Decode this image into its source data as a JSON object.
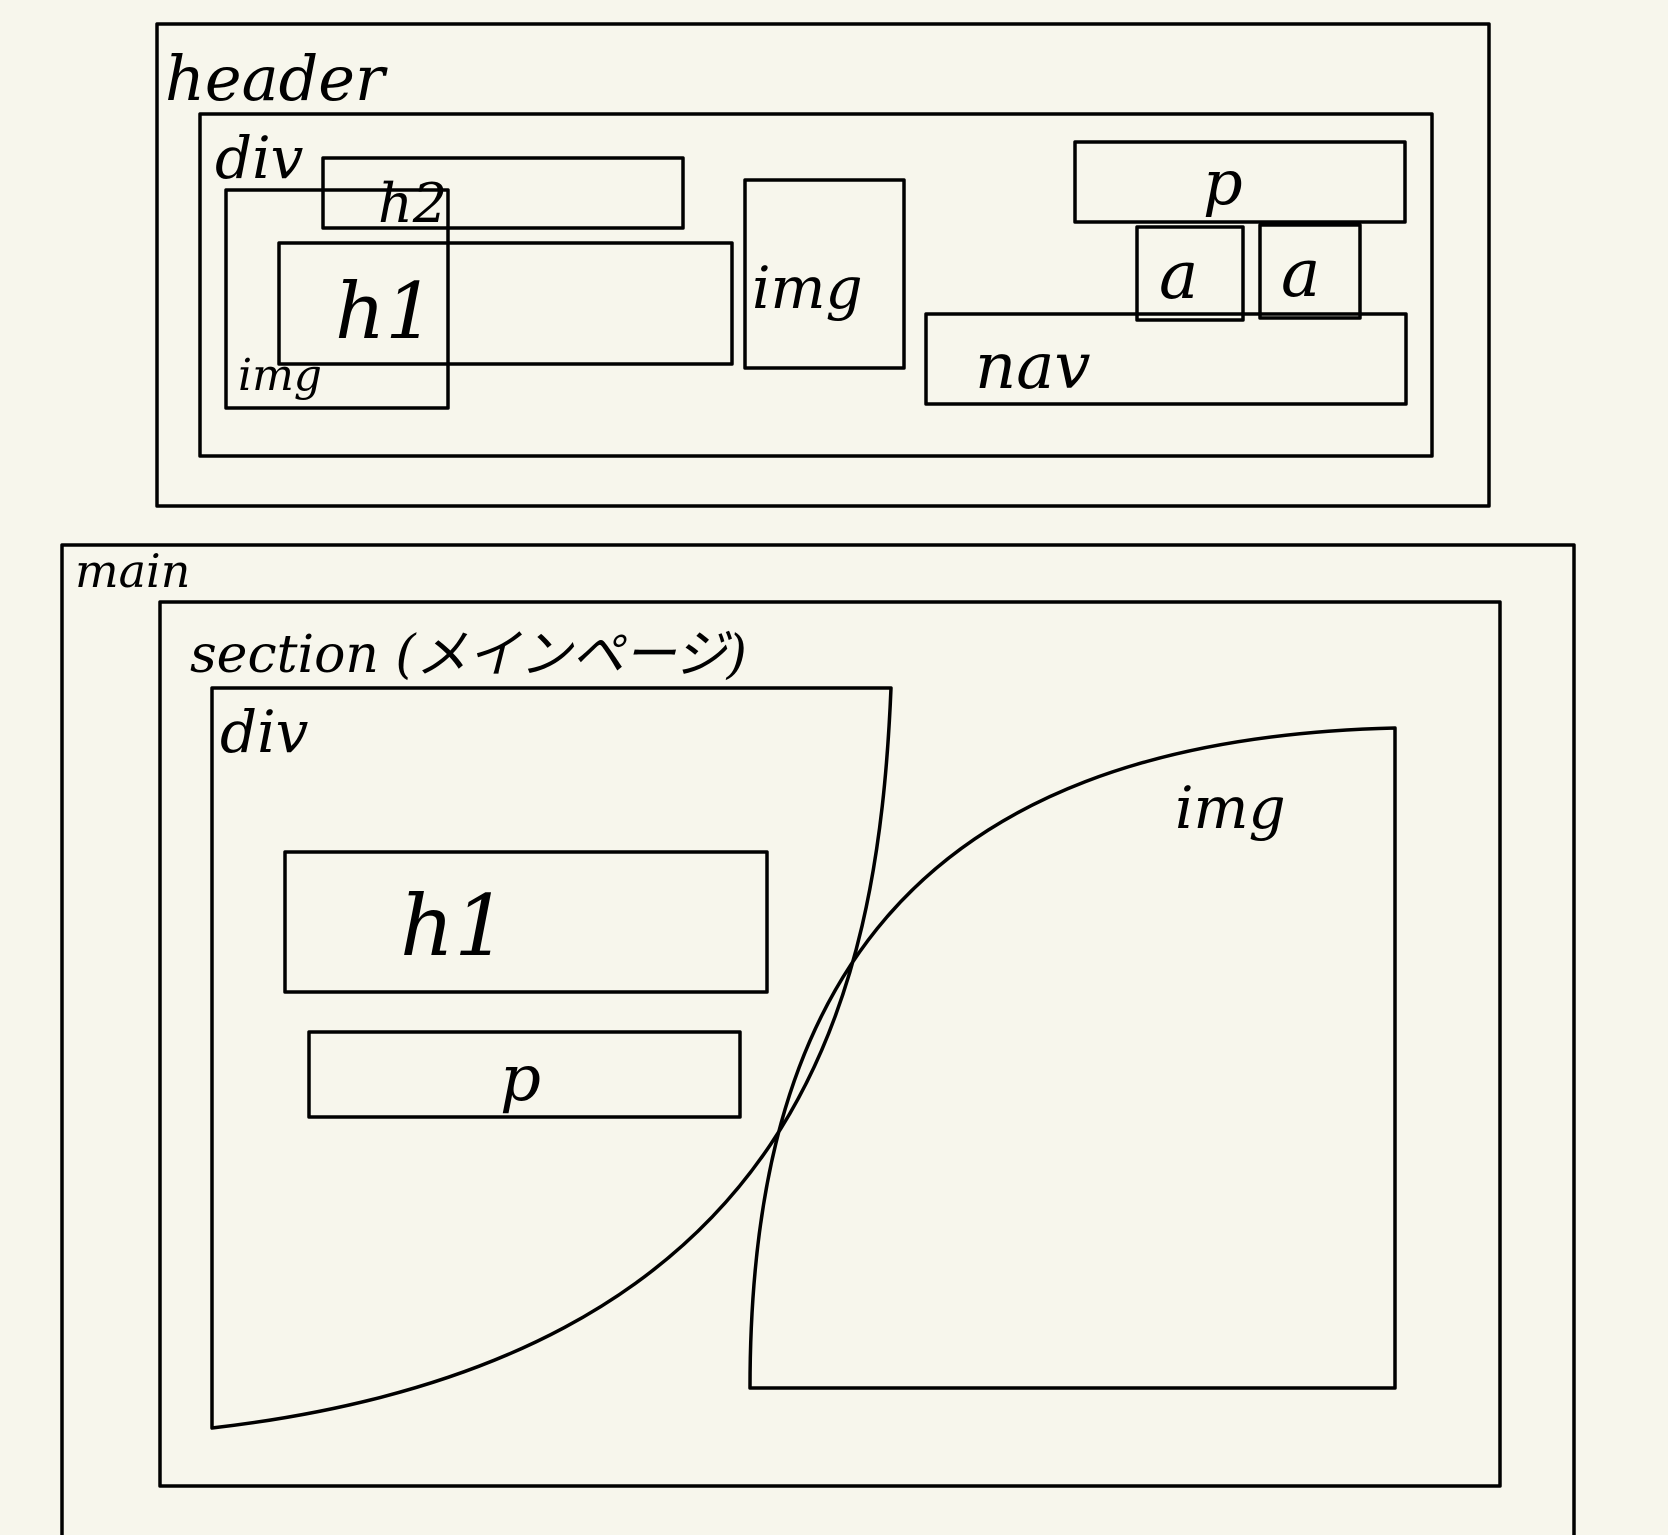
{
  "labels": {
    "header": "header",
    "header_div": "div",
    "h2": "h2",
    "header_img_left": "img",
    "header_h1": "h1",
    "header_img_center": "img",
    "header_p": "p",
    "link_a_1": "a",
    "link_a_2": "a",
    "nav": "nav",
    "main": "main",
    "section": "section (メインページ)",
    "section_div": "div",
    "section_h1": "h1",
    "section_p": "p",
    "section_img": "img"
  },
  "colors": {
    "paper": "#f7f6ec",
    "ink": "#000000"
  }
}
